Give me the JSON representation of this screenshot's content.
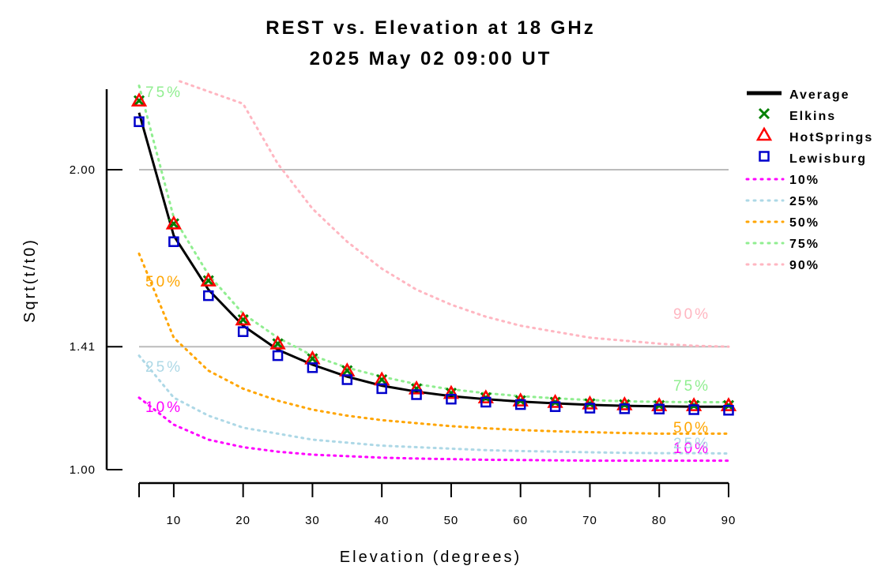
{
  "chart_data": {
    "type": "line",
    "title": "REST vs. Elevation at 18 GHz",
    "subtitle": "2025 May 02 09:00 UT",
    "xlabel": "Elevation (degrees)",
    "ylabel": "Sqrt(t/t0)",
    "xlim": [
      5,
      90
    ],
    "ylim": [
      1.0,
      2.25
    ],
    "xticks": [
      10,
      20,
      30,
      40,
      50,
      60,
      70,
      80,
      90
    ],
    "yticks": [
      {
        "value": 1.0,
        "label": "1.00"
      },
      {
        "value": 1.41,
        "label": "1.41"
      },
      {
        "value": 2.0,
        "label": "2.00"
      }
    ],
    "reference_lines": [
      1.41,
      2.0
    ],
    "x": [
      5,
      10,
      15,
      20,
      25,
      30,
      35,
      40,
      45,
      50,
      55,
      60,
      65,
      70,
      75,
      80,
      85,
      90
    ],
    "series": [
      {
        "name": "Average",
        "style": "line",
        "color": "#000000",
        "values": [
          2.19,
          1.78,
          1.6,
          1.48,
          1.4,
          1.35,
          1.31,
          1.28,
          1.26,
          1.245,
          1.235,
          1.227,
          1.221,
          1.216,
          1.213,
          1.211,
          1.21,
          1.21
        ]
      },
      {
        "name": "Elkins",
        "style": "x",
        "color": "#008000",
        "values": [
          2.23,
          1.82,
          1.63,
          1.5,
          1.42,
          1.37,
          1.33,
          1.3,
          1.27,
          1.255,
          1.24,
          1.23,
          1.225,
          1.22,
          1.217,
          1.214,
          1.214,
          1.214
        ]
      },
      {
        "name": "HotSprings",
        "style": "triangle",
        "color": "#ff0000",
        "values": [
          2.23,
          1.82,
          1.63,
          1.5,
          1.42,
          1.37,
          1.33,
          1.3,
          1.27,
          1.255,
          1.24,
          1.23,
          1.225,
          1.22,
          1.217,
          1.214,
          1.214,
          1.214
        ]
      },
      {
        "name": "Lewisburg",
        "style": "square",
        "color": "#0000cc",
        "values": [
          2.16,
          1.76,
          1.58,
          1.46,
          1.38,
          1.34,
          1.3,
          1.27,
          1.25,
          1.235,
          1.225,
          1.217,
          1.21,
          1.205,
          1.203,
          1.202,
          1.2,
          1.198
        ]
      }
    ],
    "percentiles": [
      {
        "name": "10%",
        "color": "#ff00ff",
        "values": [
          1.24,
          1.15,
          1.1,
          1.075,
          1.06,
          1.05,
          1.045,
          1.04,
          1.037,
          1.035,
          1.033,
          1.032,
          1.031,
          1.03,
          1.03,
          1.03,
          1.03,
          1.03
        ]
      },
      {
        "name": "25%",
        "color": "#add8e6",
        "values": [
          1.38,
          1.24,
          1.18,
          1.14,
          1.12,
          1.1,
          1.09,
          1.08,
          1.075,
          1.07,
          1.065,
          1.062,
          1.06,
          1.058,
          1.056,
          1.055,
          1.055,
          1.054
        ]
      },
      {
        "name": "50%",
        "color": "#ffa500",
        "values": [
          1.72,
          1.44,
          1.33,
          1.27,
          1.23,
          1.2,
          1.18,
          1.165,
          1.155,
          1.145,
          1.138,
          1.132,
          1.128,
          1.125,
          1.122,
          1.12,
          1.12,
          1.12
        ]
      },
      {
        "name": "75%",
        "color": "#90ee90",
        "values": [
          2.28,
          1.84,
          1.65,
          1.52,
          1.44,
          1.38,
          1.34,
          1.31,
          1.285,
          1.268,
          1.255,
          1.245,
          1.238,
          1.232,
          1.228,
          1.226,
          1.225,
          1.225
        ]
      },
      {
        "name": "90%",
        "color": "#ffb6c1",
        "values": [
          null,
          null,
          null,
          2.22,
          2.02,
          1.87,
          1.76,
          1.67,
          1.6,
          1.55,
          1.51,
          1.48,
          1.46,
          1.44,
          1.43,
          1.42,
          1.413,
          1.41
        ]
      }
    ],
    "legend_placement": "right",
    "grid": false
  }
}
